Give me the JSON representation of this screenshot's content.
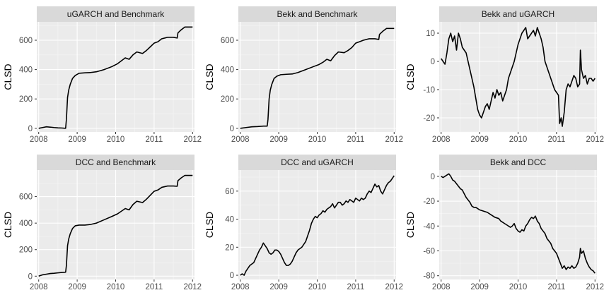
{
  "chart_data": [
    {
      "type": "line",
      "title": "uGARCH and Benchmark",
      "xlabel": "",
      "ylabel": "CLSD",
      "xlim": [
        2007.95,
        2012.05
      ],
      "ylim": [
        -25,
        725
      ],
      "x_ticks": [
        "2008",
        "2009",
        "2010",
        "2011",
        "2012"
      ],
      "y_ticks": [
        "0",
        "200",
        "400",
        "600"
      ],
      "grid": true,
      "series": [
        {
          "x": [
            2008.0,
            2008.1,
            2008.2,
            2008.3,
            2008.4,
            2008.5,
            2008.6,
            2008.7,
            2008.72,
            2008.75,
            2008.78,
            2008.82,
            2008.88,
            2008.95,
            2009.05,
            2009.2,
            2009.35,
            2009.5,
            2009.7,
            2009.9,
            2010.05,
            2010.15,
            2010.25,
            2010.35,
            2010.45,
            2010.55,
            2010.7,
            2010.8,
            2010.9,
            2011.0,
            2011.1,
            2011.2,
            2011.35,
            2011.5,
            2011.6,
            2011.62,
            2011.7,
            2011.8,
            2011.9,
            2012.0
          ],
          "y": [
            0,
            5,
            10,
            8,
            5,
            3,
            2,
            0,
            60,
            210,
            260,
            300,
            340,
            360,
            375,
            378,
            380,
            385,
            400,
            420,
            440,
            460,
            480,
            470,
            500,
            520,
            510,
            530,
            555,
            580,
            590,
            610,
            620,
            620,
            615,
            650,
            670,
            690,
            690,
            690
          ]
        }
      ]
    },
    {
      "type": "line",
      "title": "Bekk and Benchmark",
      "xlabel": "",
      "ylabel": "CLSD",
      "xlim": [
        2007.95,
        2012.05
      ],
      "ylim": [
        -25,
        725
      ],
      "x_ticks": [
        "2008",
        "2009",
        "2010",
        "2011",
        "2012"
      ],
      "y_ticks": [
        "0",
        "200",
        "400",
        "600"
      ],
      "grid": true,
      "series": [
        {
          "x": [
            2008.0,
            2008.15,
            2008.3,
            2008.45,
            2008.6,
            2008.7,
            2008.72,
            2008.75,
            2008.78,
            2008.82,
            2008.88,
            2008.95,
            2009.05,
            2009.2,
            2009.35,
            2009.5,
            2009.7,
            2009.9,
            2010.05,
            2010.15,
            2010.25,
            2010.35,
            2010.45,
            2010.55,
            2010.7,
            2010.8,
            2010.9,
            2011.0,
            2011.1,
            2011.2,
            2011.35,
            2011.5,
            2011.6,
            2011.62,
            2011.7,
            2011.8,
            2011.9,
            2012.0
          ],
          "y": [
            0,
            5,
            10,
            12,
            15,
            15,
            60,
            200,
            260,
            300,
            340,
            355,
            365,
            368,
            370,
            380,
            400,
            420,
            435,
            450,
            470,
            460,
            495,
            520,
            515,
            530,
            550,
            580,
            590,
            600,
            610,
            610,
            605,
            640,
            660,
            680,
            680,
            680
          ]
        }
      ]
    },
    {
      "type": "line",
      "title": "Bekk and uGARCH",
      "xlabel": "",
      "ylabel": "CLSD",
      "xlim": [
        2007.95,
        2012.05
      ],
      "ylim": [
        -25,
        14
      ],
      "x_ticks": [
        "2008",
        "2009",
        "2010",
        "2011",
        "2012"
      ],
      "y_ticks": [
        "-20",
        "-10",
        "0",
        "10"
      ],
      "grid": true,
      "series": [
        {
          "x": [
            2008.0,
            2008.05,
            2008.1,
            2008.15,
            2008.2,
            2008.25,
            2008.3,
            2008.35,
            2008.4,
            2008.45,
            2008.5,
            2008.55,
            2008.6,
            2008.65,
            2008.7,
            2008.75,
            2008.8,
            2008.85,
            2008.9,
            2008.95,
            2009.0,
            2009.05,
            2009.1,
            2009.15,
            2009.2,
            2009.25,
            2009.3,
            2009.35,
            2009.4,
            2009.45,
            2009.5,
            2009.55,
            2009.6,
            2009.65,
            2009.7,
            2009.75,
            2009.8,
            2009.85,
            2009.9,
            2009.95,
            2010.0,
            2010.05,
            2010.1,
            2010.15,
            2010.2,
            2010.25,
            2010.3,
            2010.35,
            2010.4,
            2010.45,
            2010.5,
            2010.55,
            2010.6,
            2010.65,
            2010.7,
            2010.75,
            2010.8,
            2010.85,
            2010.9,
            2010.95,
            2011.0,
            2011.05,
            2011.08,
            2011.12,
            2011.15,
            2011.2,
            2011.25,
            2011.3,
            2011.35,
            2011.4,
            2011.45,
            2011.5,
            2011.55,
            2011.6,
            2011.62,
            2011.65,
            2011.7,
            2011.75,
            2011.8,
            2011.85,
            2011.9,
            2011.95,
            2012.0
          ],
          "y": [
            1,
            0,
            -1,
            3,
            8,
            10,
            7,
            9,
            4,
            10,
            8,
            5,
            4,
            3,
            0,
            -3,
            -6,
            -9,
            -13,
            -17,
            -19,
            -20,
            -18,
            -16,
            -15,
            -17,
            -14,
            -11,
            -13,
            -10,
            -12,
            -11,
            -14,
            -12,
            -10,
            -6,
            -4,
            -2,
            0,
            3,
            6,
            8,
            10,
            11,
            12,
            8,
            9,
            10,
            11,
            9,
            12,
            10,
            8,
            5,
            0,
            -2,
            -4,
            -6,
            -8,
            -10,
            -11,
            -12,
            -22,
            -20,
            -23,
            -18,
            -10,
            -8,
            -9,
            -7,
            -5,
            -6,
            -9,
            -8,
            4,
            -3,
            -6,
            -5,
            -8,
            -6,
            -6,
            -7,
            -6
          ]
        }
      ]
    },
    {
      "type": "line",
      "title": "DCC and Benchmark",
      "xlabel": "",
      "ylabel": "CLSD",
      "xlim": [
        2007.95,
        2012.05
      ],
      "ylim": [
        -25,
        800
      ],
      "x_ticks": [
        "2008",
        "2009",
        "2010",
        "2011",
        "2012"
      ],
      "y_ticks": [
        "0",
        "200",
        "400",
        "600"
      ],
      "grid": true,
      "series": [
        {
          "x": [
            2008.0,
            2008.1,
            2008.2,
            2008.3,
            2008.4,
            2008.5,
            2008.6,
            2008.7,
            2008.72,
            2008.75,
            2008.78,
            2008.82,
            2008.88,
            2008.95,
            2009.05,
            2009.2,
            2009.35,
            2009.5,
            2009.7,
            2009.9,
            2010.05,
            2010.15,
            2010.25,
            2010.35,
            2010.45,
            2010.55,
            2010.7,
            2010.8,
            2010.9,
            2011.0,
            2011.1,
            2011.2,
            2011.35,
            2011.5,
            2011.6,
            2011.62,
            2011.7,
            2011.8,
            2011.9,
            2012.0
          ],
          "y": [
            0,
            10,
            15,
            20,
            22,
            25,
            28,
            30,
            80,
            230,
            280,
            320,
            360,
            380,
            385,
            385,
            390,
            400,
            425,
            450,
            470,
            490,
            510,
            500,
            540,
            565,
            555,
            580,
            610,
            640,
            650,
            670,
            680,
            680,
            678,
            720,
            740,
            760,
            760,
            760
          ]
        }
      ]
    },
    {
      "type": "line",
      "title": "DCC and uGARCH",
      "xlabel": "",
      "ylabel": "CLSD",
      "xlim": [
        2007.95,
        2012.05
      ],
      "ylim": [
        -3,
        75
      ],
      "x_ticks": [
        "2008",
        "2009",
        "2010",
        "2011",
        "2012"
      ],
      "y_ticks": [
        "0",
        "20",
        "40",
        "60"
      ],
      "grid": true,
      "series": [
        {
          "x": [
            2008.0,
            2008.05,
            2008.1,
            2008.15,
            2008.2,
            2008.25,
            2008.3,
            2008.35,
            2008.4,
            2008.45,
            2008.5,
            2008.55,
            2008.6,
            2008.65,
            2008.7,
            2008.75,
            2008.8,
            2008.85,
            2008.9,
            2008.95,
            2009.0,
            2009.05,
            2009.1,
            2009.15,
            2009.2,
            2009.25,
            2009.3,
            2009.35,
            2009.4,
            2009.45,
            2009.5,
            2009.55,
            2009.6,
            2009.65,
            2009.7,
            2009.75,
            2009.8,
            2009.85,
            2009.9,
            2009.95,
            2010.0,
            2010.05,
            2010.1,
            2010.15,
            2010.2,
            2010.25,
            2010.3,
            2010.35,
            2010.4,
            2010.45,
            2010.5,
            2010.55,
            2010.6,
            2010.65,
            2010.7,
            2010.75,
            2010.8,
            2010.85,
            2010.9,
            2010.95,
            2011.0,
            2011.05,
            2011.1,
            2011.15,
            2011.2,
            2011.25,
            2011.3,
            2011.35,
            2011.4,
            2011.45,
            2011.5,
            2011.55,
            2011.6,
            2011.65,
            2011.7,
            2011.75,
            2011.8,
            2011.85,
            2011.9,
            2011.95,
            2012.0
          ],
          "y": [
            0,
            1,
            0,
            3,
            5,
            7,
            8,
            9,
            12,
            15,
            18,
            20,
            23,
            21,
            19,
            16,
            15,
            16,
            18,
            18,
            17,
            15,
            12,
            9,
            7,
            7,
            8,
            10,
            13,
            16,
            18,
            19,
            20,
            22,
            24,
            28,
            32,
            37,
            40,
            42,
            41,
            43,
            44,
            46,
            45,
            47,
            48,
            49,
            51,
            48,
            50,
            52,
            52,
            50,
            51,
            53,
            52,
            54,
            53,
            52,
            55,
            54,
            53,
            55,
            54,
            55,
            58,
            60,
            59,
            62,
            65,
            63,
            64,
            60,
            58,
            61,
            64,
            66,
            67,
            69,
            71
          ]
        }
      ]
    },
    {
      "type": "line",
      "title": "Bekk and DCC",
      "xlabel": "",
      "ylabel": "CLSD",
      "xlim": [
        2007.95,
        2012.05
      ],
      "ylim": [
        -83,
        5
      ],
      "x_ticks": [
        "2008",
        "2009",
        "2010",
        "2011",
        "2012"
      ],
      "y_ticks": [
        "-80",
        "-60",
        "-40",
        "-20",
        "0"
      ],
      "grid": true,
      "series": [
        {
          "x": [
            2008.0,
            2008.05,
            2008.1,
            2008.15,
            2008.2,
            2008.25,
            2008.3,
            2008.35,
            2008.4,
            2008.45,
            2008.5,
            2008.55,
            2008.6,
            2008.65,
            2008.7,
            2008.75,
            2008.8,
            2008.85,
            2008.9,
            2008.95,
            2009.0,
            2009.1,
            2009.2,
            2009.3,
            2009.4,
            2009.5,
            2009.55,
            2009.6,
            2009.65,
            2009.7,
            2009.75,
            2009.8,
            2009.85,
            2009.9,
            2009.95,
            2010.0,
            2010.05,
            2010.1,
            2010.15,
            2010.2,
            2010.25,
            2010.3,
            2010.35,
            2010.4,
            2010.45,
            2010.5,
            2010.55,
            2010.6,
            2010.65,
            2010.7,
            2010.75,
            2010.8,
            2010.85,
            2010.9,
            2010.95,
            2011.0,
            2011.05,
            2011.1,
            2011.15,
            2011.2,
            2011.25,
            2011.3,
            2011.35,
            2011.4,
            2011.45,
            2011.5,
            2011.55,
            2011.6,
            2011.62,
            2011.65,
            2011.7,
            2011.75,
            2011.8,
            2011.85,
            2011.9,
            2011.95,
            2012.0
          ],
          "y": [
            0,
            -1,
            0,
            1,
            2,
            0,
            -3,
            -4,
            -6,
            -8,
            -10,
            -11,
            -14,
            -17,
            -19,
            -21,
            -24,
            -25,
            -25,
            -26,
            -27,
            -28,
            -29,
            -31,
            -33,
            -34,
            -36,
            -37,
            -38,
            -39,
            -40,
            -41,
            -40,
            -38,
            -42,
            -44,
            -45,
            -43,
            -44,
            -40,
            -38,
            -35,
            -33,
            -34,
            -32,
            -36,
            -38,
            -42,
            -44,
            -46,
            -50,
            -52,
            -54,
            -58,
            -60,
            -62,
            -66,
            -70,
            -74,
            -72,
            -75,
            -73,
            -74,
            -72,
            -74,
            -73,
            -70,
            -65,
            -58,
            -62,
            -60,
            -66,
            -70,
            -73,
            -75,
            -76,
            -78
          ]
        }
      ]
    }
  ]
}
